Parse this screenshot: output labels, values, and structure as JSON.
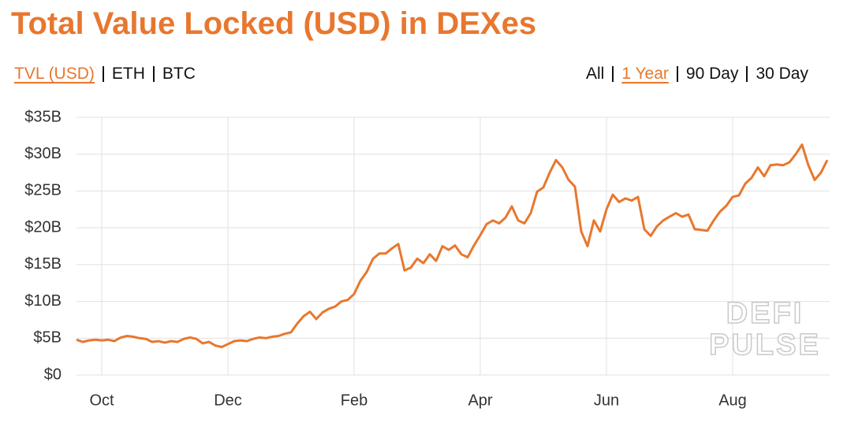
{
  "chart_data": {
    "type": "line",
    "title": "Total Value Locked (USD) in DEXes",
    "color": "#e8772e",
    "grid": true,
    "categories": [
      null,
      null,
      null,
      null,
      "Oct",
      null,
      null,
      null,
      null,
      null,
      null,
      null,
      null,
      null,
      null,
      null,
      null,
      null,
      null,
      null,
      null,
      null,
      null,
      null,
      "Dec",
      null,
      null,
      null,
      null,
      null,
      null,
      null,
      null,
      null,
      null,
      null,
      null,
      null,
      null,
      null,
      null,
      null,
      null,
      null,
      "Feb",
      null,
      null,
      null,
      null,
      null,
      null,
      null,
      null,
      null,
      null,
      null,
      null,
      null,
      null,
      null,
      null,
      null,
      null,
      null,
      "Apr",
      null,
      null,
      null,
      null,
      null,
      null,
      null,
      null,
      null,
      null,
      null,
      null,
      null,
      null,
      null,
      null,
      null,
      null,
      null,
      "Jun",
      null,
      null,
      null,
      null,
      null,
      null,
      null,
      null,
      null,
      null,
      null,
      null,
      null,
      null,
      null,
      null,
      null,
      null,
      null,
      "Aug",
      null,
      null,
      null,
      null,
      null,
      null,
      null,
      null,
      null,
      null,
      null,
      null,
      null,
      null,
      null
    ],
    "values": [
      4.8,
      4.5,
      4.7,
      4.8,
      4.7,
      4.8,
      4.6,
      5.1,
      5.3,
      5.2,
      5.0,
      4.9,
      4.5,
      4.6,
      4.4,
      4.6,
      4.5,
      4.9,
      5.1,
      4.9,
      4.3,
      4.5,
      4.0,
      3.8,
      4.2,
      4.6,
      4.7,
      4.6,
      4.9,
      5.1,
      5.0,
      5.2,
      5.3,
      5.6,
      5.8,
      7.0,
      8.0,
      8.6,
      7.6,
      8.5,
      9.0,
      9.3,
      10.0,
      10.2,
      11.0,
      12.8,
      14.0,
      15.8,
      16.5,
      16.5,
      17.2,
      17.8,
      14.2,
      14.6,
      15.8,
      15.2,
      16.4,
      15.5,
      17.5,
      17.0,
      17.6,
      16.4,
      16.0,
      17.6,
      19.0,
      20.5,
      21.0,
      20.6,
      21.4,
      22.9,
      21.0,
      20.6,
      22.0,
      24.9,
      25.5,
      27.5,
      29.2,
      28.2,
      26.5,
      25.6,
      19.5,
      17.5,
      21.0,
      19.5,
      22.5,
      24.5,
      23.5,
      24.0,
      23.7,
      24.2,
      19.8,
      18.9,
      20.2,
      21.0,
      21.5,
      22.0,
      21.5,
      21.8,
      19.8,
      19.7,
      19.6,
      21.0,
      22.2,
      23.0,
      24.2,
      24.4,
      26.0,
      26.8,
      28.2,
      27.0,
      28.5,
      28.6,
      28.5,
      28.9,
      30.0,
      31.3,
      28.5,
      26.5,
      27.5,
      29.2
    ],
    "ylim": [
      0,
      35
    ],
    "yticks": [
      {
        "value": 0,
        "label": "$0"
      },
      {
        "value": 5,
        "label": "$5B"
      },
      {
        "value": 10,
        "label": "$10B"
      },
      {
        "value": 15,
        "label": "$15B"
      },
      {
        "value": 20,
        "label": "$20B"
      },
      {
        "value": 25,
        "label": "$25B"
      },
      {
        "value": 30,
        "label": "$30B"
      },
      {
        "value": 35,
        "label": "$35B"
      }
    ]
  },
  "metric_tabs": [
    "TVL (USD)",
    "ETH",
    "BTC"
  ],
  "range_tabs": [
    "All",
    "1 Year",
    "90 Day",
    "30 Day"
  ],
  "watermark": [
    "DEFI",
    "PULSE"
  ]
}
